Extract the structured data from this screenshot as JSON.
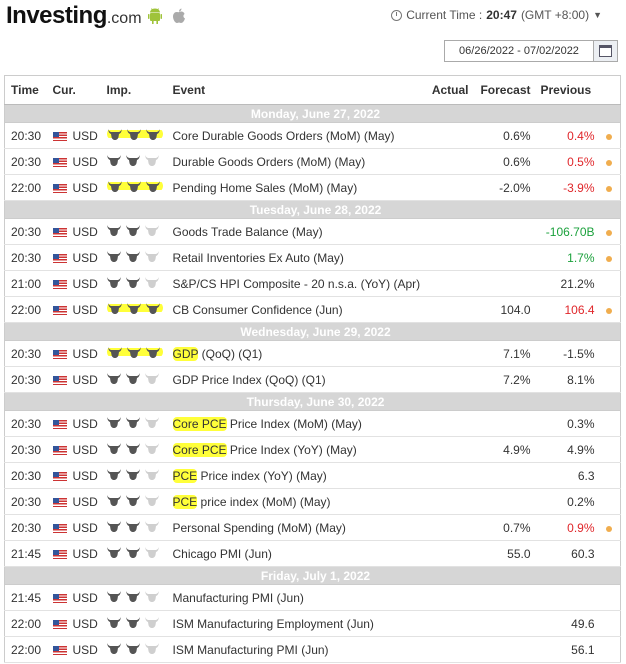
{
  "header": {
    "logo_main": "Investing",
    "logo_suffix": ".com",
    "current_time_label": "Current Time :",
    "current_time": "20:47",
    "timezone": "(GMT +8:00)",
    "date_range": "06/26/2022 - 07/02/2022"
  },
  "columns": {
    "time": "Time",
    "currency": "Cur.",
    "importance": "Imp.",
    "event": "Event",
    "actual": "Actual",
    "forecast": "Forecast",
    "previous": "Previous"
  },
  "colors": {
    "negative": "#e0262a",
    "positive": "#1ba13c",
    "highlight": "#ffff33",
    "dot": "#f0ad4e"
  },
  "days": [
    {
      "label": "Monday, June 27, 2022",
      "events": [
        {
          "time": "20:30",
          "cur": "USD",
          "imp": 3,
          "hl_bulls": true,
          "event": "Core Durable Goods Orders (MoM) (May)",
          "actual": "",
          "forecast": "0.6%",
          "previous": "0.4%",
          "prev_color": "neg",
          "dot": true
        },
        {
          "time": "20:30",
          "cur": "USD",
          "imp": 2,
          "hl_bulls": false,
          "event": "Durable Goods Orders (MoM) (May)",
          "actual": "",
          "forecast": "0.6%",
          "previous": "0.5%",
          "prev_color": "neg",
          "dot": true
        },
        {
          "time": "22:00",
          "cur": "USD",
          "imp": 3,
          "hl_bulls": true,
          "event": "Pending Home Sales (MoM) (May)",
          "actual": "",
          "forecast": "-2.0%",
          "previous": "-3.9%",
          "prev_color": "neg",
          "dot": true
        }
      ]
    },
    {
      "label": "Tuesday, June 28, 2022",
      "events": [
        {
          "time": "20:30",
          "cur": "USD",
          "imp": 2,
          "hl_bulls": false,
          "event": "Goods Trade Balance (May)",
          "actual": "",
          "forecast": "",
          "previous": "-106.70B",
          "prev_color": "pos",
          "dot": true
        },
        {
          "time": "20:30",
          "cur": "USD",
          "imp": 2,
          "hl_bulls": false,
          "event": "Retail Inventories Ex Auto (May)",
          "actual": "",
          "forecast": "",
          "previous": "1.7%",
          "prev_color": "pos",
          "dot": true
        },
        {
          "time": "21:00",
          "cur": "USD",
          "imp": 2,
          "hl_bulls": false,
          "event": "S&P/CS HPI Composite - 20 n.s.a. (YoY) (Apr)",
          "actual": "",
          "forecast": "",
          "previous": "21.2%",
          "prev_color": "",
          "dot": false
        },
        {
          "time": "22:00",
          "cur": "USD",
          "imp": 3,
          "hl_bulls": true,
          "event": "CB Consumer Confidence (Jun)",
          "actual": "",
          "forecast": "104.0",
          "previous": "106.4",
          "prev_color": "neg",
          "dot": true
        }
      ]
    },
    {
      "label": "Wednesday, June 29, 2022",
      "events": [
        {
          "time": "20:30",
          "cur": "USD",
          "imp": 3,
          "hl_bulls": true,
          "event": "GDP (QoQ) (Q1)",
          "hl_text": "GDP",
          "actual": "",
          "forecast": "7.1%",
          "previous": "-1.5%",
          "prev_color": "",
          "dot": false
        },
        {
          "time": "20:30",
          "cur": "USD",
          "imp": 2,
          "hl_bulls": false,
          "event": "GDP Price Index (QoQ) (Q1)",
          "actual": "",
          "forecast": "7.2%",
          "previous": "8.1%",
          "prev_color": "",
          "dot": false
        }
      ]
    },
    {
      "label": "Thursday, June 30, 2022",
      "events": [
        {
          "time": "20:30",
          "cur": "USD",
          "imp": 2,
          "hl_bulls": false,
          "event": "Core PCE Price Index (MoM) (May)",
          "hl_text": "Core PCE",
          "actual": "",
          "forecast": "",
          "previous": "0.3%",
          "prev_color": "",
          "dot": false
        },
        {
          "time": "20:30",
          "cur": "USD",
          "imp": 2,
          "hl_bulls": false,
          "event": "Core PCE Price Index (YoY) (May)",
          "hl_text": "Core PCE",
          "actual": "",
          "forecast": "4.9%",
          "previous": "4.9%",
          "prev_color": "",
          "dot": false
        },
        {
          "time": "20:30",
          "cur": "USD",
          "imp": 2,
          "hl_bulls": false,
          "event": "PCE Price index (YoY) (May)",
          "hl_text": "PCE",
          "actual": "",
          "forecast": "",
          "previous": "6.3",
          "prev_color": "",
          "dot": false
        },
        {
          "time": "20:30",
          "cur": "USD",
          "imp": 2,
          "hl_bulls": false,
          "event": "PCE price index (MoM) (May)",
          "hl_text": "PCE",
          "actual": "",
          "forecast": "",
          "previous": "0.2%",
          "prev_color": "",
          "dot": false
        },
        {
          "time": "20:30",
          "cur": "USD",
          "imp": 2,
          "hl_bulls": false,
          "event": "Personal Spending (MoM) (May)",
          "actual": "",
          "forecast": "0.7%",
          "previous": "0.9%",
          "prev_color": "neg",
          "dot": true
        },
        {
          "time": "21:45",
          "cur": "USD",
          "imp": 2,
          "hl_bulls": false,
          "event": "Chicago PMI (Jun)",
          "actual": "",
          "forecast": "55.0",
          "previous": "60.3",
          "prev_color": "",
          "dot": false
        }
      ]
    },
    {
      "label": "Friday, July 1, 2022",
      "events": [
        {
          "time": "21:45",
          "cur": "USD",
          "imp": 2,
          "hl_bulls": false,
          "event": "Manufacturing PMI (Jun)",
          "actual": "",
          "forecast": "",
          "previous": "",
          "prev_color": "",
          "dot": false
        },
        {
          "time": "22:00",
          "cur": "USD",
          "imp": 2,
          "hl_bulls": false,
          "event": "ISM Manufacturing Employment (Jun)",
          "actual": "",
          "forecast": "",
          "previous": "49.6",
          "prev_color": "",
          "dot": false
        },
        {
          "time": "22:00",
          "cur": "USD",
          "imp": 2,
          "hl_bulls": false,
          "event": "ISM Manufacturing PMI (Jun)",
          "actual": "",
          "forecast": "",
          "previous": "56.1",
          "prev_color": "",
          "dot": false
        }
      ]
    }
  ]
}
